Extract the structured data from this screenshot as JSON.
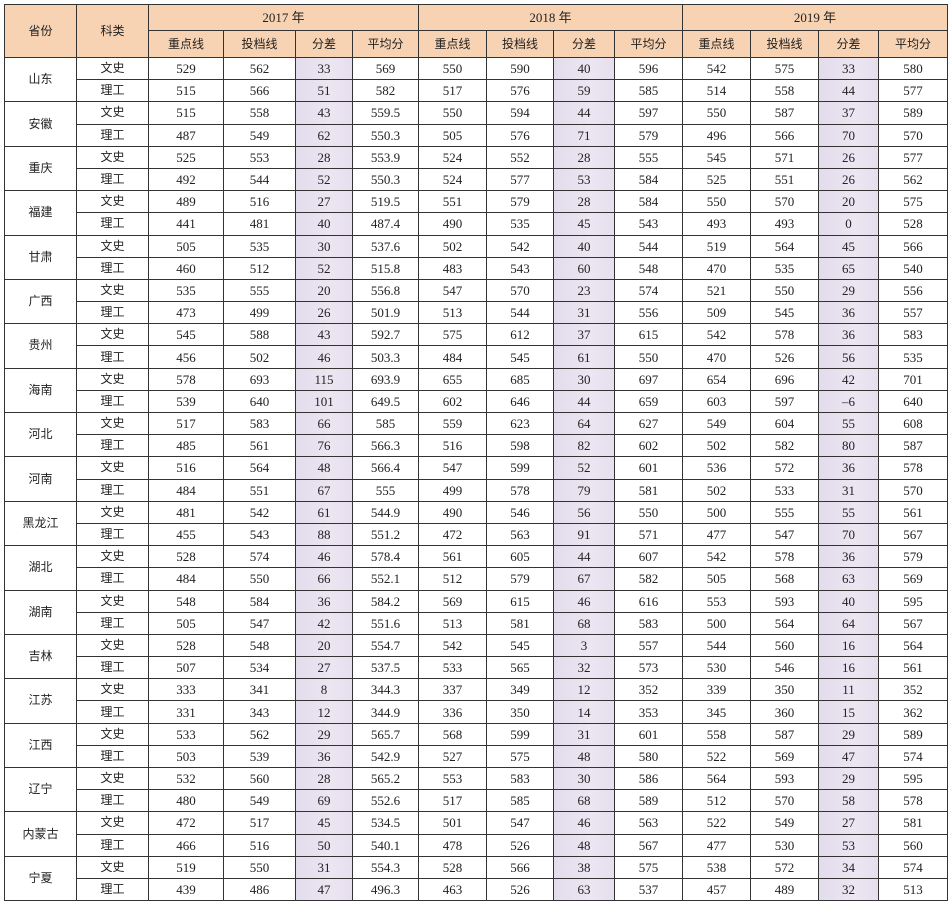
{
  "headers": {
    "province": "省份",
    "subject": "科类",
    "years": [
      "2017 年",
      "2018 年",
      "2019 年"
    ],
    "columns": [
      "重点线",
      "投档线",
      "分差",
      "平均分"
    ]
  },
  "colors": {
    "header_bg": "#f8d3b3",
    "diff_column_bg": "#e6deee"
  },
  "provinces": [
    {
      "name": "山东",
      "rows": [
        {
          "subject": "文史",
          "values": [
            "529",
            "562",
            "33",
            "569",
            "550",
            "590",
            "40",
            "596",
            "542",
            "575",
            "33",
            "580"
          ]
        },
        {
          "subject": "理工",
          "values": [
            "515",
            "566",
            "51",
            "582",
            "517",
            "576",
            "59",
            "585",
            "514",
            "558",
            "44",
            "577"
          ]
        }
      ]
    },
    {
      "name": "安徽",
      "rows": [
        {
          "subject": "文史",
          "values": [
            "515",
            "558",
            "43",
            "559.5",
            "550",
            "594",
            "44",
            "597",
            "550",
            "587",
            "37",
            "589"
          ]
        },
        {
          "subject": "理工",
          "values": [
            "487",
            "549",
            "62",
            "550.3",
            "505",
            "576",
            "71",
            "579",
            "496",
            "566",
            "70",
            "570"
          ]
        }
      ]
    },
    {
      "name": "重庆",
      "rows": [
        {
          "subject": "文史",
          "values": [
            "525",
            "553",
            "28",
            "553.9",
            "524",
            "552",
            "28",
            "555",
            "545",
            "571",
            "26",
            "577"
          ]
        },
        {
          "subject": "理工",
          "values": [
            "492",
            "544",
            "52",
            "550.3",
            "524",
            "577",
            "53",
            "584",
            "525",
            "551",
            "26",
            "562"
          ]
        }
      ]
    },
    {
      "name": "福建",
      "rows": [
        {
          "subject": "文史",
          "values": [
            "489",
            "516",
            "27",
            "519.5",
            "551",
            "579",
            "28",
            "584",
            "550",
            "570",
            "20",
            "575"
          ]
        },
        {
          "subject": "理工",
          "values": [
            "441",
            "481",
            "40",
            "487.4",
            "490",
            "535",
            "45",
            "543",
            "493",
            "493",
            "0",
            "528"
          ]
        }
      ]
    },
    {
      "name": "甘肃",
      "rows": [
        {
          "subject": "文史",
          "values": [
            "505",
            "535",
            "30",
            "537.6",
            "502",
            "542",
            "40",
            "544",
            "519",
            "564",
            "45",
            "566"
          ]
        },
        {
          "subject": "理工",
          "values": [
            "460",
            "512",
            "52",
            "515.8",
            "483",
            "543",
            "60",
            "548",
            "470",
            "535",
            "65",
            "540"
          ]
        }
      ]
    },
    {
      "name": "广西",
      "rows": [
        {
          "subject": "文史",
          "values": [
            "535",
            "555",
            "20",
            "556.8",
            "547",
            "570",
            "23",
            "574",
            "521",
            "550",
            "29",
            "556"
          ]
        },
        {
          "subject": "理工",
          "values": [
            "473",
            "499",
            "26",
            "501.9",
            "513",
            "544",
            "31",
            "556",
            "509",
            "545",
            "36",
            "557"
          ]
        }
      ]
    },
    {
      "name": "贵州",
      "rows": [
        {
          "subject": "文史",
          "values": [
            "545",
            "588",
            "43",
            "592.7",
            "575",
            "612",
            "37",
            "615",
            "542",
            "578",
            "36",
            "583"
          ]
        },
        {
          "subject": "理工",
          "values": [
            "456",
            "502",
            "46",
            "503.3",
            "484",
            "545",
            "61",
            "550",
            "470",
            "526",
            "56",
            "535"
          ]
        }
      ]
    },
    {
      "name": "海南",
      "rows": [
        {
          "subject": "文史",
          "values": [
            "578",
            "693",
            "115",
            "693.9",
            "655",
            "685",
            "30",
            "697",
            "654",
            "696",
            "42",
            "701"
          ]
        },
        {
          "subject": "理工",
          "values": [
            "539",
            "640",
            "101",
            "649.5",
            "602",
            "646",
            "44",
            "659",
            "603",
            "597",
            "–6",
            "640"
          ]
        }
      ]
    },
    {
      "name": "河北",
      "rows": [
        {
          "subject": "文史",
          "values": [
            "517",
            "583",
            "66",
            "585",
            "559",
            "623",
            "64",
            "627",
            "549",
            "604",
            "55",
            "608"
          ]
        },
        {
          "subject": "理工",
          "values": [
            "485",
            "561",
            "76",
            "566.3",
            "516",
            "598",
            "82",
            "602",
            "502",
            "582",
            "80",
            "587"
          ]
        }
      ]
    },
    {
      "name": "河南",
      "rows": [
        {
          "subject": "文史",
          "values": [
            "516",
            "564",
            "48",
            "566.4",
            "547",
            "599",
            "52",
            "601",
            "536",
            "572",
            "36",
            "578"
          ]
        },
        {
          "subject": "理工",
          "values": [
            "484",
            "551",
            "67",
            "555",
            "499",
            "578",
            "79",
            "581",
            "502",
            "533",
            "31",
            "570"
          ]
        }
      ]
    },
    {
      "name": "黑龙江",
      "rows": [
        {
          "subject": "文史",
          "values": [
            "481",
            "542",
            "61",
            "544.9",
            "490",
            "546",
            "56",
            "550",
            "500",
            "555",
            "55",
            "561"
          ]
        },
        {
          "subject": "理工",
          "values": [
            "455",
            "543",
            "88",
            "551.2",
            "472",
            "563",
            "91",
            "571",
            "477",
            "547",
            "70",
            "567"
          ]
        }
      ]
    },
    {
      "name": "湖北",
      "rows": [
        {
          "subject": "文史",
          "values": [
            "528",
            "574",
            "46",
            "578.4",
            "561",
            "605",
            "44",
            "607",
            "542",
            "578",
            "36",
            "579"
          ]
        },
        {
          "subject": "理工",
          "values": [
            "484",
            "550",
            "66",
            "552.1",
            "512",
            "579",
            "67",
            "582",
            "505",
            "568",
            "63",
            "569"
          ]
        }
      ]
    },
    {
      "name": "湖南",
      "rows": [
        {
          "subject": "文史",
          "values": [
            "548",
            "584",
            "36",
            "584.2",
            "569",
            "615",
            "46",
            "616",
            "553",
            "593",
            "40",
            "595"
          ]
        },
        {
          "subject": "理工",
          "values": [
            "505",
            "547",
            "42",
            "551.6",
            "513",
            "581",
            "68",
            "583",
            "500",
            "564",
            "64",
            "567"
          ]
        }
      ]
    },
    {
      "name": "吉林",
      "rows": [
        {
          "subject": "文史",
          "values": [
            "528",
            "548",
            "20",
            "554.7",
            "542",
            "545",
            "3",
            "557",
            "544",
            "560",
            "16",
            "564"
          ]
        },
        {
          "subject": "理工",
          "values": [
            "507",
            "534",
            "27",
            "537.5",
            "533",
            "565",
            "32",
            "573",
            "530",
            "546",
            "16",
            "561"
          ]
        }
      ]
    },
    {
      "name": "江苏",
      "rows": [
        {
          "subject": "文史",
          "values": [
            "333",
            "341",
            "8",
            "344.3",
            "337",
            "349",
            "12",
            "352",
            "339",
            "350",
            "11",
            "352"
          ]
        },
        {
          "subject": "理工",
          "values": [
            "331",
            "343",
            "12",
            "344.9",
            "336",
            "350",
            "14",
            "353",
            "345",
            "360",
            "15",
            "362"
          ]
        }
      ]
    },
    {
      "name": "江西",
      "rows": [
        {
          "subject": "文史",
          "values": [
            "533",
            "562",
            "29",
            "565.7",
            "568",
            "599",
            "31",
            "601",
            "558",
            "587",
            "29",
            "589"
          ]
        },
        {
          "subject": "理工",
          "values": [
            "503",
            "539",
            "36",
            "542.9",
            "527",
            "575",
            "48",
            "580",
            "522",
            "569",
            "47",
            "574"
          ]
        }
      ]
    },
    {
      "name": "辽宁",
      "rows": [
        {
          "subject": "文史",
          "values": [
            "532",
            "560",
            "28",
            "565.2",
            "553",
            "583",
            "30",
            "586",
            "564",
            "593",
            "29",
            "595"
          ]
        },
        {
          "subject": "理工",
          "values": [
            "480",
            "549",
            "69",
            "552.6",
            "517",
            "585",
            "68",
            "589",
            "512",
            "570",
            "58",
            "578"
          ]
        }
      ]
    },
    {
      "name": "内蒙古",
      "rows": [
        {
          "subject": "文史",
          "values": [
            "472",
            "517",
            "45",
            "534.5",
            "501",
            "547",
            "46",
            "563",
            "522",
            "549",
            "27",
            "581"
          ]
        },
        {
          "subject": "理工",
          "values": [
            "466",
            "516",
            "50",
            "540.1",
            "478",
            "526",
            "48",
            "567",
            "477",
            "530",
            "53",
            "560"
          ]
        }
      ]
    },
    {
      "name": "宁夏",
      "rows": [
        {
          "subject": "文史",
          "values": [
            "519",
            "550",
            "31",
            "554.3",
            "528",
            "566",
            "38",
            "575",
            "538",
            "572",
            "34",
            "574"
          ]
        },
        {
          "subject": "理工",
          "values": [
            "439",
            "486",
            "47",
            "496.3",
            "463",
            "526",
            "63",
            "537",
            "457",
            "489",
            "32",
            "513"
          ]
        }
      ]
    }
  ]
}
